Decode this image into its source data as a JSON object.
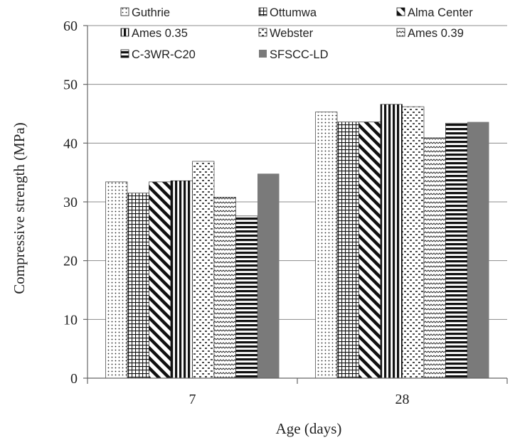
{
  "chart_data": {
    "type": "bar",
    "xlabel": "Age (days)",
    "ylabel": "Compressive strength (MPa)",
    "ylim": [
      0,
      60
    ],
    "yticks": [
      0,
      10,
      20,
      30,
      40,
      50,
      60
    ],
    "grid": true,
    "legend_position": "top",
    "categories": [
      "7",
      "28"
    ],
    "series": [
      {
        "name": "Guthrie",
        "pattern": "dots",
        "values": [
          33.4,
          45.3
        ]
      },
      {
        "name": "Ottumwa",
        "pattern": "grid",
        "values": [
          31.5,
          43.6
        ]
      },
      {
        "name": "Alma Center",
        "pattern": "diagonal-down",
        "values": [
          33.4,
          43.6
        ]
      },
      {
        "name": "Ames 0.35",
        "pattern": "vertical",
        "values": [
          33.6,
          46.6
        ]
      },
      {
        "name": "Webster",
        "pattern": "dashes",
        "values": [
          36.9,
          46.2
        ]
      },
      {
        "name": "Ames 0.39",
        "pattern": "zigzag",
        "values": [
          30.8,
          40.9
        ]
      },
      {
        "name": "C-3WR-C20",
        "pattern": "horizontal",
        "values": [
          27.6,
          43.4
        ]
      },
      {
        "name": "SFSCC-LD",
        "pattern": "solid",
        "values": [
          34.8,
          43.6
        ]
      }
    ],
    "colors": {
      "bar_stroke": "#1a1a1a",
      "solid_fill": "#7a7a7a",
      "grid": "#8c8c8c",
      "axis": "#666666",
      "text": "#222222"
    }
  }
}
